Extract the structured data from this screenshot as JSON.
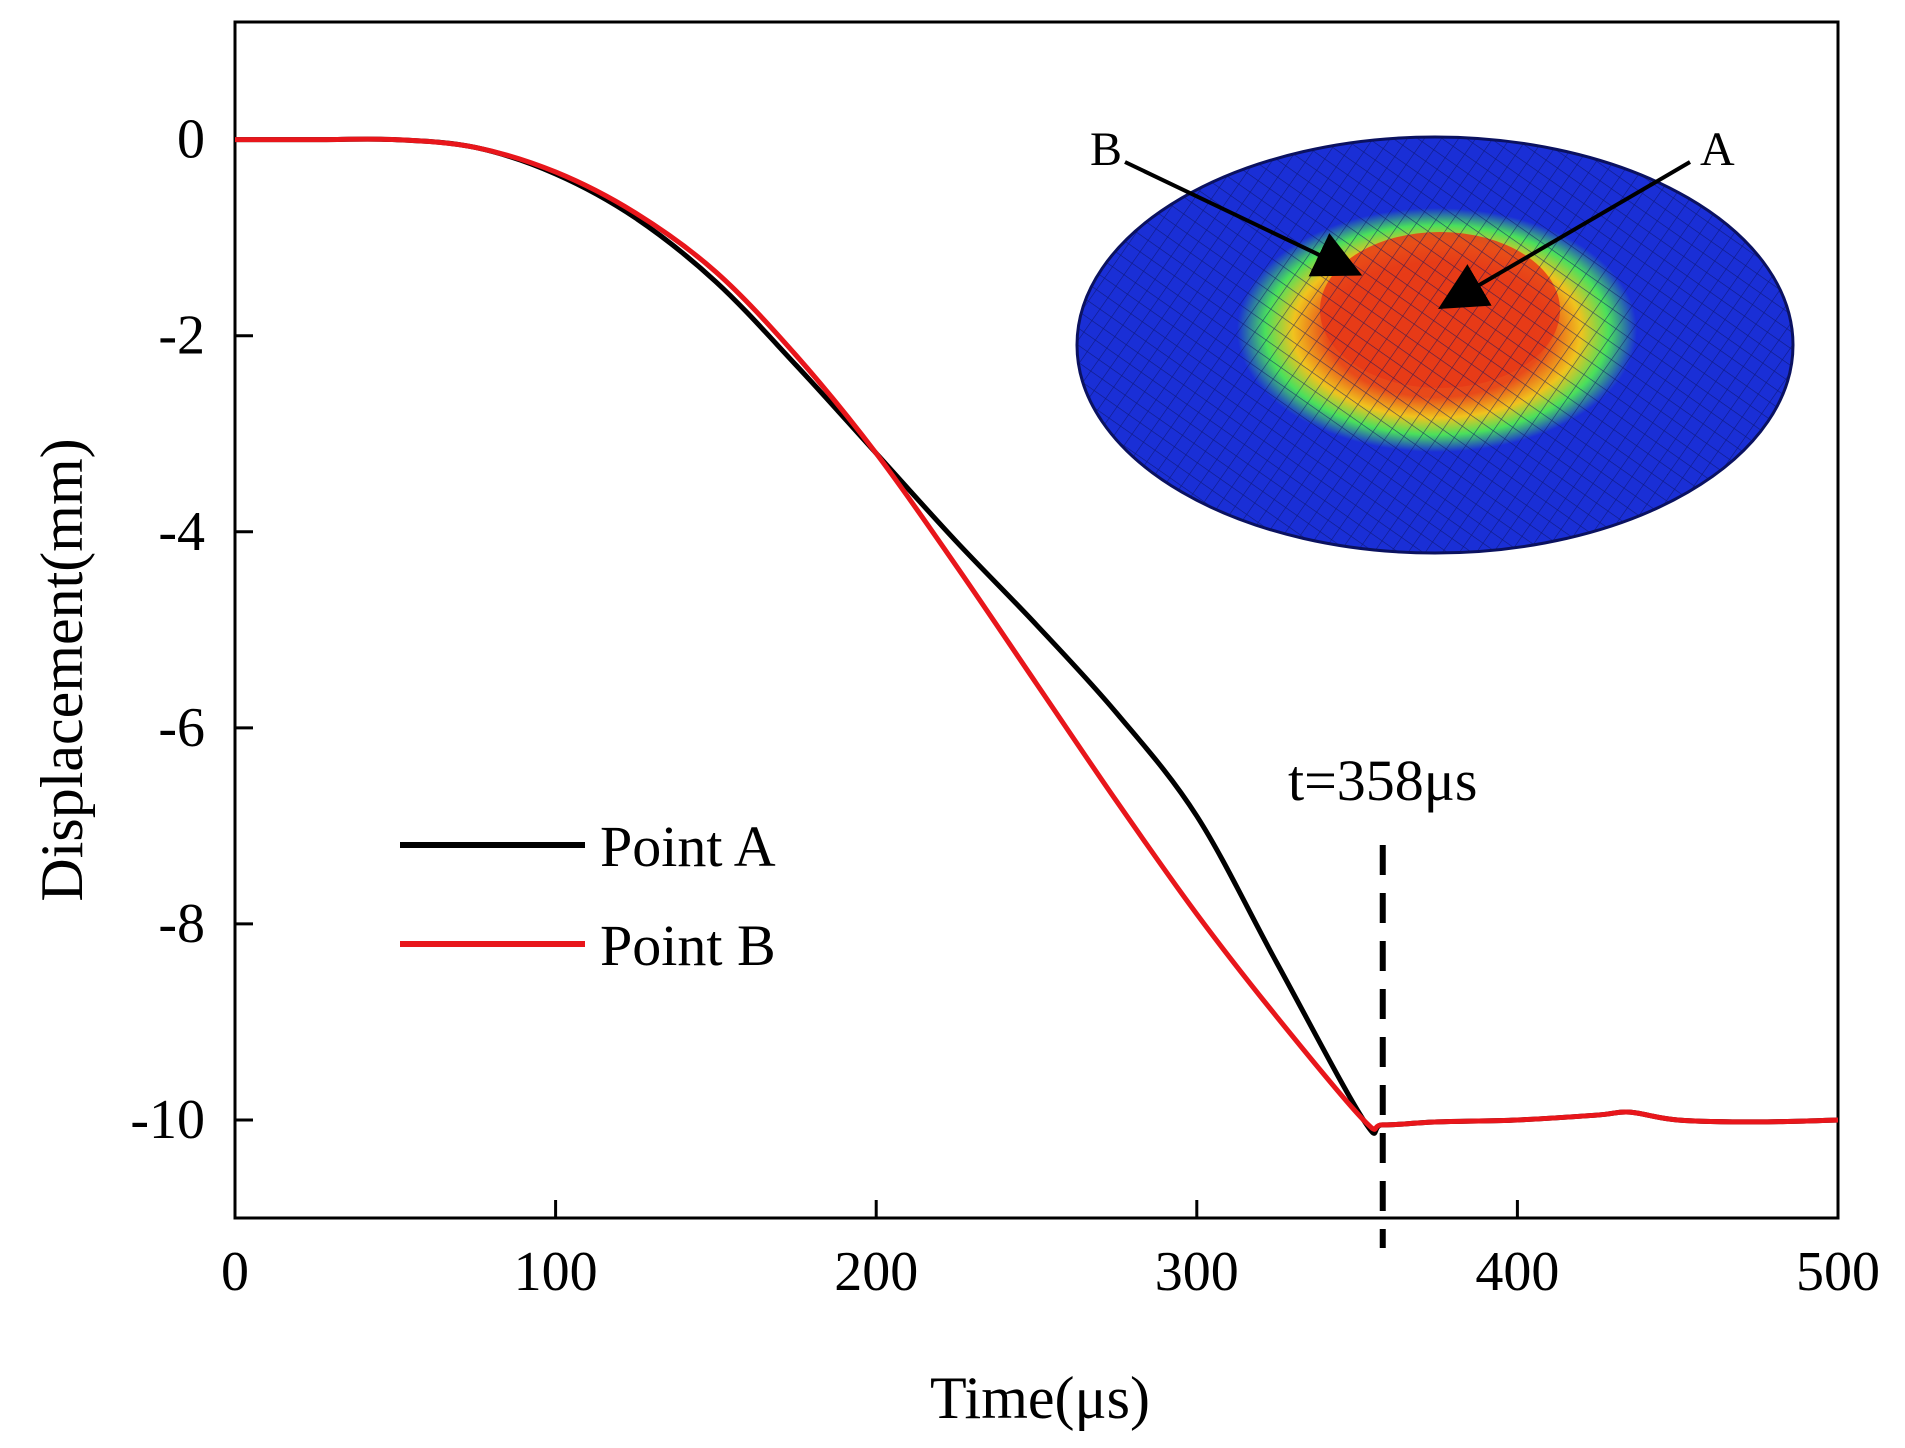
{
  "chart_data": {
    "type": "line",
    "title": "",
    "xlabel": "Time(μs)",
    "ylabel": "Displacement(mm)",
    "xlim": [
      0,
      500
    ],
    "ylim": [
      -11,
      1.2
    ],
    "xticks": [
      0,
      100,
      200,
      300,
      400,
      500
    ],
    "yticks": [
      0,
      -2,
      -4,
      -6,
      -8,
      -10
    ],
    "xtick_labels": [
      "0",
      "100",
      "200",
      "300",
      "400",
      "500"
    ],
    "ytick_labels": [
      "0",
      "-2",
      "-4",
      "-6",
      "-8",
      "-10"
    ],
    "grid": false,
    "legend_position": "lower-left",
    "series": [
      {
        "name": "Point A",
        "color": "#000000",
        "x": [
          0,
          25,
          50,
          75,
          100,
          125,
          150,
          175,
          200,
          225,
          250,
          275,
          300,
          325,
          352,
          358,
          375,
          400,
          425,
          435,
          450,
          475,
          500
        ],
        "y": [
          0,
          0,
          0,
          -0.08,
          -0.35,
          -0.8,
          -1.45,
          -2.3,
          -3.2,
          -4.1,
          -4.95,
          -5.85,
          -6.9,
          -8.4,
          -10.0,
          -10.05,
          -10.02,
          -10.0,
          -9.95,
          -9.92,
          -10.0,
          -10.02,
          -10.0
        ]
      },
      {
        "name": "Point B",
        "color": "#e8161b",
        "x": [
          0,
          25,
          50,
          75,
          100,
          125,
          150,
          175,
          200,
          225,
          250,
          275,
          300,
          325,
          352,
          358,
          375,
          400,
          425,
          435,
          450,
          475,
          500
        ],
        "y": [
          0,
          0,
          0,
          -0.08,
          -0.33,
          -0.75,
          -1.35,
          -2.2,
          -3.2,
          -4.35,
          -5.55,
          -6.75,
          -7.9,
          -8.95,
          -10.0,
          -10.05,
          -10.02,
          -10.0,
          -9.95,
          -9.92,
          -10.0,
          -10.02,
          -10.0
        ]
      }
    ],
    "annotations": [
      {
        "text": "t=358μs",
        "x": 358,
        "style": "dashed-vertical-line"
      }
    ],
    "inset": {
      "description": "deformed circular plate mesh",
      "labels": [
        "B",
        "A"
      ],
      "colors": {
        "outer": "#1a2fd6",
        "mid": "#38e05a",
        "hot": "#f5e21e",
        "core": "#e63a18",
        "mesh": "#0b1260"
      }
    }
  }
}
